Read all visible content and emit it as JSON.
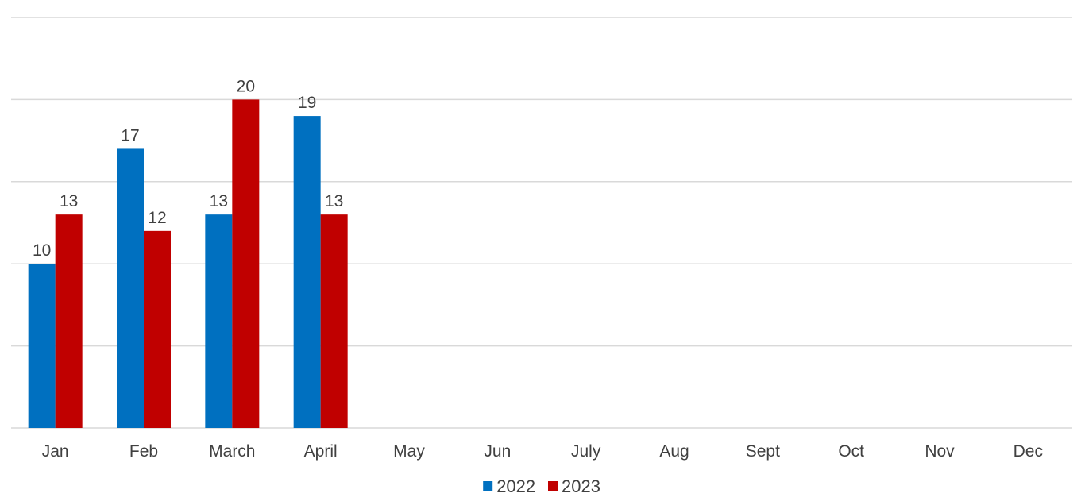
{
  "chart_data": {
    "type": "bar",
    "categories": [
      "Jan",
      "Feb",
      "March",
      "April",
      "May",
      "Jun",
      "July",
      "Aug",
      "Sept",
      "Oct",
      "Nov",
      "Dec"
    ],
    "series": [
      {
        "name": "2022",
        "color": "#0070C0",
        "values": [
          10,
          17,
          13,
          19,
          null,
          null,
          null,
          null,
          null,
          null,
          null,
          null
        ]
      },
      {
        "name": "2023",
        "color": "#C00000",
        "values": [
          13,
          12,
          20,
          13,
          null,
          null,
          null,
          null,
          null,
          null,
          null,
          null
        ]
      }
    ],
    "ylim": [
      0,
      25
    ],
    "y_gridlines": [
      0,
      5,
      10,
      15,
      20,
      25
    ],
    "grid": true,
    "data_labels": true,
    "legend": "bottom-center"
  }
}
